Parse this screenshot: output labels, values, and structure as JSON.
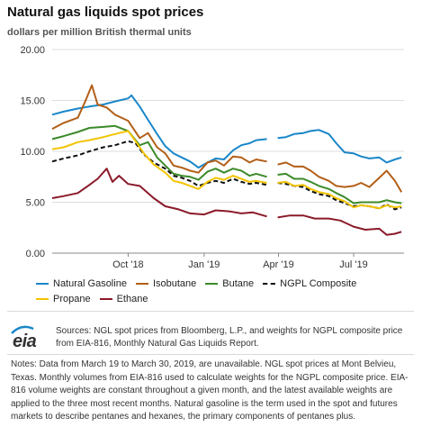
{
  "title": "Natural gas liquids spot prices",
  "subtitle": "dollars per million British thermal units",
  "chart_data": {
    "type": "line",
    "ylim": [
      0,
      20
    ],
    "yticks": [
      "0.00",
      "5.00",
      "10.00",
      "15.00",
      "20.00"
    ],
    "x_range": [
      "2018-07-01",
      "2019-08-31"
    ],
    "xticks": [
      {
        "date": "2018-10-01",
        "label": "Oct '18"
      },
      {
        "date": "2019-01-01",
        "label": "Jan '19"
      },
      {
        "date": "2019-04-01",
        "label": "Apr '19"
      },
      {
        "date": "2019-07-01",
        "label": "Jul '19"
      }
    ],
    "gap": [
      "2019-03-19",
      "2019-03-30"
    ],
    "series": [
      {
        "name": "Natural Gasoline",
        "color": "#1a87c9",
        "dash": false,
        "points": [
          [
            "2018-07-01",
            13.6
          ],
          [
            "2018-07-15",
            13.9
          ],
          [
            "2018-08-01",
            14.2
          ],
          [
            "2018-08-15",
            14.4
          ],
          [
            "2018-09-01",
            14.6
          ],
          [
            "2018-09-15",
            14.9
          ],
          [
            "2018-10-01",
            15.2
          ],
          [
            "2018-10-05",
            15.5
          ],
          [
            "2018-10-15",
            14.4
          ],
          [
            "2018-10-25",
            13.1
          ],
          [
            "2018-11-05",
            11.7
          ],
          [
            "2018-11-15",
            10.5
          ],
          [
            "2018-11-25",
            9.8
          ],
          [
            "2018-12-05",
            9.4
          ],
          [
            "2018-12-15",
            9.0
          ],
          [
            "2018-12-25",
            8.4
          ],
          [
            "2019-01-05",
            8.9
          ],
          [
            "2019-01-15",
            9.3
          ],
          [
            "2019-01-25",
            9.2
          ],
          [
            "2019-02-05",
            10.1
          ],
          [
            "2019-02-15",
            10.6
          ],
          [
            "2019-02-25",
            10.8
          ],
          [
            "2019-03-05",
            11.1
          ],
          [
            "2019-03-18",
            11.2
          ],
          [
            "2019-03-31",
            11.3
          ],
          [
            "2019-04-10",
            11.4
          ],
          [
            "2019-04-20",
            11.7
          ],
          [
            "2019-05-01",
            11.8
          ],
          [
            "2019-05-10",
            12.0
          ],
          [
            "2019-05-20",
            12.1
          ],
          [
            "2019-06-01",
            11.7
          ],
          [
            "2019-06-10",
            10.8
          ],
          [
            "2019-06-20",
            9.9
          ],
          [
            "2019-07-01",
            9.8
          ],
          [
            "2019-07-10",
            9.5
          ],
          [
            "2019-07-20",
            9.3
          ],
          [
            "2019-08-01",
            9.4
          ],
          [
            "2019-08-10",
            8.9
          ],
          [
            "2019-08-20",
            9.2
          ],
          [
            "2019-08-28",
            9.4
          ]
        ]
      },
      {
        "name": "Isobutane",
        "color": "#b25f18",
        "dash": false,
        "points": [
          [
            "2018-07-01",
            12.2
          ],
          [
            "2018-07-15",
            12.8
          ],
          [
            "2018-08-01",
            13.3
          ],
          [
            "2018-08-10",
            14.9
          ],
          [
            "2018-08-18",
            16.5
          ],
          [
            "2018-08-25",
            14.6
          ],
          [
            "2018-09-05",
            14.3
          ],
          [
            "2018-09-15",
            13.6
          ],
          [
            "2018-10-01",
            13.0
          ],
          [
            "2018-10-15",
            11.3
          ],
          [
            "2018-10-25",
            11.8
          ],
          [
            "2018-11-05",
            10.4
          ],
          [
            "2018-11-15",
            9.8
          ],
          [
            "2018-11-25",
            8.6
          ],
          [
            "2018-12-05",
            8.4
          ],
          [
            "2018-12-15",
            8.1
          ],
          [
            "2018-12-25",
            7.9
          ],
          [
            "2019-01-05",
            8.9
          ],
          [
            "2019-01-15",
            9.1
          ],
          [
            "2019-01-25",
            8.6
          ],
          [
            "2019-02-05",
            9.5
          ],
          [
            "2019-02-15",
            9.4
          ],
          [
            "2019-02-25",
            8.9
          ],
          [
            "2019-03-05",
            9.2
          ],
          [
            "2019-03-18",
            9.0
          ],
          [
            "2019-03-31",
            8.7
          ],
          [
            "2019-04-10",
            8.9
          ],
          [
            "2019-04-20",
            8.5
          ],
          [
            "2019-05-01",
            8.5
          ],
          [
            "2019-05-10",
            8.1
          ],
          [
            "2019-05-20",
            7.5
          ],
          [
            "2019-06-01",
            7.1
          ],
          [
            "2019-06-10",
            6.6
          ],
          [
            "2019-06-20",
            6.5
          ],
          [
            "2019-07-01",
            6.6
          ],
          [
            "2019-07-10",
            6.9
          ],
          [
            "2019-07-20",
            6.5
          ],
          [
            "2019-08-01",
            7.4
          ],
          [
            "2019-08-10",
            8.1
          ],
          [
            "2019-08-20",
            7.1
          ],
          [
            "2019-08-28",
            6.0
          ]
        ]
      },
      {
        "name": "Butane",
        "color": "#3c8a2a",
        "dash": false,
        "points": [
          [
            "2018-07-01",
            11.2
          ],
          [
            "2018-07-15",
            11.5
          ],
          [
            "2018-08-01",
            11.9
          ],
          [
            "2018-08-15",
            12.3
          ],
          [
            "2018-09-01",
            12.4
          ],
          [
            "2018-09-15",
            12.5
          ],
          [
            "2018-10-01",
            12.0
          ],
          [
            "2018-10-15",
            10.6
          ],
          [
            "2018-10-25",
            10.9
          ],
          [
            "2018-11-05",
            9.4
          ],
          [
            "2018-11-15",
            8.6
          ],
          [
            "2018-11-25",
            7.8
          ],
          [
            "2018-12-05",
            7.6
          ],
          [
            "2018-12-15",
            7.5
          ],
          [
            "2018-12-25",
            7.2
          ],
          [
            "2019-01-05",
            8.0
          ],
          [
            "2019-01-15",
            8.3
          ],
          [
            "2019-01-25",
            7.9
          ],
          [
            "2019-02-05",
            8.3
          ],
          [
            "2019-02-15",
            8.1
          ],
          [
            "2019-02-25",
            7.6
          ],
          [
            "2019-03-05",
            7.8
          ],
          [
            "2019-03-18",
            7.5
          ],
          [
            "2019-03-31",
            7.7
          ],
          [
            "2019-04-10",
            7.8
          ],
          [
            "2019-04-20",
            7.3
          ],
          [
            "2019-05-01",
            7.3
          ],
          [
            "2019-05-10",
            7.0
          ],
          [
            "2019-05-20",
            6.6
          ],
          [
            "2019-06-01",
            6.3
          ],
          [
            "2019-06-10",
            5.9
          ],
          [
            "2019-06-20",
            5.5
          ],
          [
            "2019-07-01",
            4.9
          ],
          [
            "2019-07-10",
            5.0
          ],
          [
            "2019-07-20",
            5.0
          ],
          [
            "2019-08-01",
            5.0
          ],
          [
            "2019-08-10",
            5.2
          ],
          [
            "2019-08-20",
            5.0
          ],
          [
            "2019-08-28",
            4.9
          ]
        ]
      },
      {
        "name": "NGPL Composite",
        "color": "#111111",
        "dash": true,
        "points": [
          [
            "2018-07-01",
            9.0
          ],
          [
            "2018-07-15",
            9.3
          ],
          [
            "2018-08-01",
            9.6
          ],
          [
            "2018-08-15",
            10.0
          ],
          [
            "2018-09-01",
            10.4
          ],
          [
            "2018-09-15",
            10.6
          ],
          [
            "2018-10-01",
            11.0
          ],
          [
            "2018-10-10",
            10.8
          ],
          [
            "2018-10-20",
            9.7
          ],
          [
            "2018-11-01",
            8.9
          ],
          [
            "2018-11-15",
            8.3
          ],
          [
            "2018-11-25",
            7.6
          ],
          [
            "2018-12-05",
            7.4
          ],
          [
            "2018-12-15",
            7.1
          ],
          [
            "2018-12-25",
            6.6
          ],
          [
            "2019-01-05",
            6.9
          ],
          [
            "2019-01-15",
            7.1
          ],
          [
            "2019-01-25",
            6.9
          ],
          [
            "2019-02-05",
            7.3
          ],
          [
            "2019-02-15",
            7.0
          ],
          [
            "2019-02-25",
            6.8
          ],
          [
            "2019-03-05",
            6.9
          ],
          [
            "2019-03-18",
            6.7
          ],
          [
            "2019-03-31",
            6.9
          ],
          [
            "2019-04-10",
            6.8
          ],
          [
            "2019-04-20",
            6.6
          ],
          [
            "2019-05-01",
            6.5
          ],
          [
            "2019-05-10",
            6.1
          ],
          [
            "2019-05-20",
            5.8
          ],
          [
            "2019-06-01",
            5.6
          ],
          [
            "2019-06-10",
            5.2
          ],
          [
            "2019-06-20",
            4.9
          ],
          [
            "2019-07-01",
            4.6
          ],
          [
            "2019-07-10",
            4.7
          ],
          [
            "2019-07-20",
            4.6
          ],
          [
            "2019-08-01",
            4.4
          ],
          [
            "2019-08-10",
            4.8
          ],
          [
            "2019-08-20",
            4.3
          ],
          [
            "2019-08-28",
            4.5
          ]
        ]
      },
      {
        "name": "Propane",
        "color": "#f2c400",
        "dash": false,
        "points": [
          [
            "2018-07-01",
            10.2
          ],
          [
            "2018-07-15",
            10.4
          ],
          [
            "2018-08-01",
            10.9
          ],
          [
            "2018-08-15",
            11.1
          ],
          [
            "2018-09-01",
            11.4
          ],
          [
            "2018-09-15",
            11.7
          ],
          [
            "2018-10-01",
            12.0
          ],
          [
            "2018-10-10",
            11.0
          ],
          [
            "2018-10-20",
            9.8
          ],
          [
            "2018-11-01",
            8.7
          ],
          [
            "2018-11-15",
            7.9
          ],
          [
            "2018-11-25",
            7.1
          ],
          [
            "2018-12-05",
            6.9
          ],
          [
            "2018-12-15",
            6.6
          ],
          [
            "2018-12-25",
            6.3
          ],
          [
            "2019-01-05",
            7.0
          ],
          [
            "2019-01-15",
            7.4
          ],
          [
            "2019-01-25",
            7.2
          ],
          [
            "2019-02-05",
            7.6
          ],
          [
            "2019-02-15",
            7.3
          ],
          [
            "2019-02-25",
            7.0
          ],
          [
            "2019-03-05",
            7.1
          ],
          [
            "2019-03-18",
            6.9
          ],
          [
            "2019-03-31",
            6.9
          ],
          [
            "2019-04-10",
            7.0
          ],
          [
            "2019-04-20",
            6.6
          ],
          [
            "2019-05-01",
            6.7
          ],
          [
            "2019-05-10",
            6.3
          ],
          [
            "2019-05-20",
            6.0
          ],
          [
            "2019-06-01",
            5.8
          ],
          [
            "2019-06-10",
            5.4
          ],
          [
            "2019-06-20",
            5.1
          ],
          [
            "2019-07-01",
            4.5
          ],
          [
            "2019-07-10",
            4.7
          ],
          [
            "2019-07-20",
            4.6
          ],
          [
            "2019-08-01",
            4.4
          ],
          [
            "2019-08-10",
            4.7
          ],
          [
            "2019-08-20",
            4.5
          ],
          [
            "2019-08-28",
            4.6
          ]
        ]
      },
      {
        "name": "Ethane",
        "color": "#8b1a2a",
        "dash": false,
        "points": [
          [
            "2018-07-01",
            5.4
          ],
          [
            "2018-07-15",
            5.6
          ],
          [
            "2018-08-01",
            5.9
          ],
          [
            "2018-08-15",
            6.7
          ],
          [
            "2018-08-25",
            7.3
          ],
          [
            "2018-09-05",
            8.3
          ],
          [
            "2018-09-12",
            7.0
          ],
          [
            "2018-09-20",
            7.6
          ],
          [
            "2018-10-01",
            6.8
          ],
          [
            "2018-10-15",
            6.6
          ],
          [
            "2018-11-01",
            5.4
          ],
          [
            "2018-11-15",
            4.6
          ],
          [
            "2018-12-01",
            4.3
          ],
          [
            "2018-12-15",
            3.9
          ],
          [
            "2019-01-01",
            3.8
          ],
          [
            "2019-01-15",
            4.2
          ],
          [
            "2019-02-01",
            4.1
          ],
          [
            "2019-02-15",
            3.9
          ],
          [
            "2019-03-01",
            4.0
          ],
          [
            "2019-03-18",
            3.6
          ],
          [
            "2019-03-31",
            3.5
          ],
          [
            "2019-04-15",
            3.7
          ],
          [
            "2019-05-01",
            3.7
          ],
          [
            "2019-05-15",
            3.4
          ],
          [
            "2019-06-01",
            3.4
          ],
          [
            "2019-06-15",
            3.2
          ],
          [
            "2019-07-01",
            2.6
          ],
          [
            "2019-07-15",
            2.3
          ],
          [
            "2019-08-01",
            2.4
          ],
          [
            "2019-08-10",
            1.8
          ],
          [
            "2019-08-20",
            1.9
          ],
          [
            "2019-08-28",
            2.1
          ]
        ]
      }
    ]
  },
  "legend": {
    "row1": [
      "Natural Gasoline",
      "Isobutane",
      "Butane",
      "NGPL Composite"
    ],
    "row2": [
      "Propane",
      "Ethane"
    ]
  },
  "logo_text": "eia",
  "sources": "Sources: NGL spot prices from Bloomberg, L.P., and weights for NGPL composite price from EIA-816, Monthly Natural Gas Liquids Report.",
  "notes": "Notes: Data from March 19 to March 30, 2019, are unavailable. NGL spot prices at Mont Belvieu, Texas. Monthly volumes from EIA-816 used to calculate weights for the NGPL composite price. EIA-816 volume weights are constant throughout a given month, and the latest available weights are applied to the three most recent months. Natural gasoline is the term used in the spot and futures markets to describe pentanes and hexanes, the primary components of pentanes plus."
}
